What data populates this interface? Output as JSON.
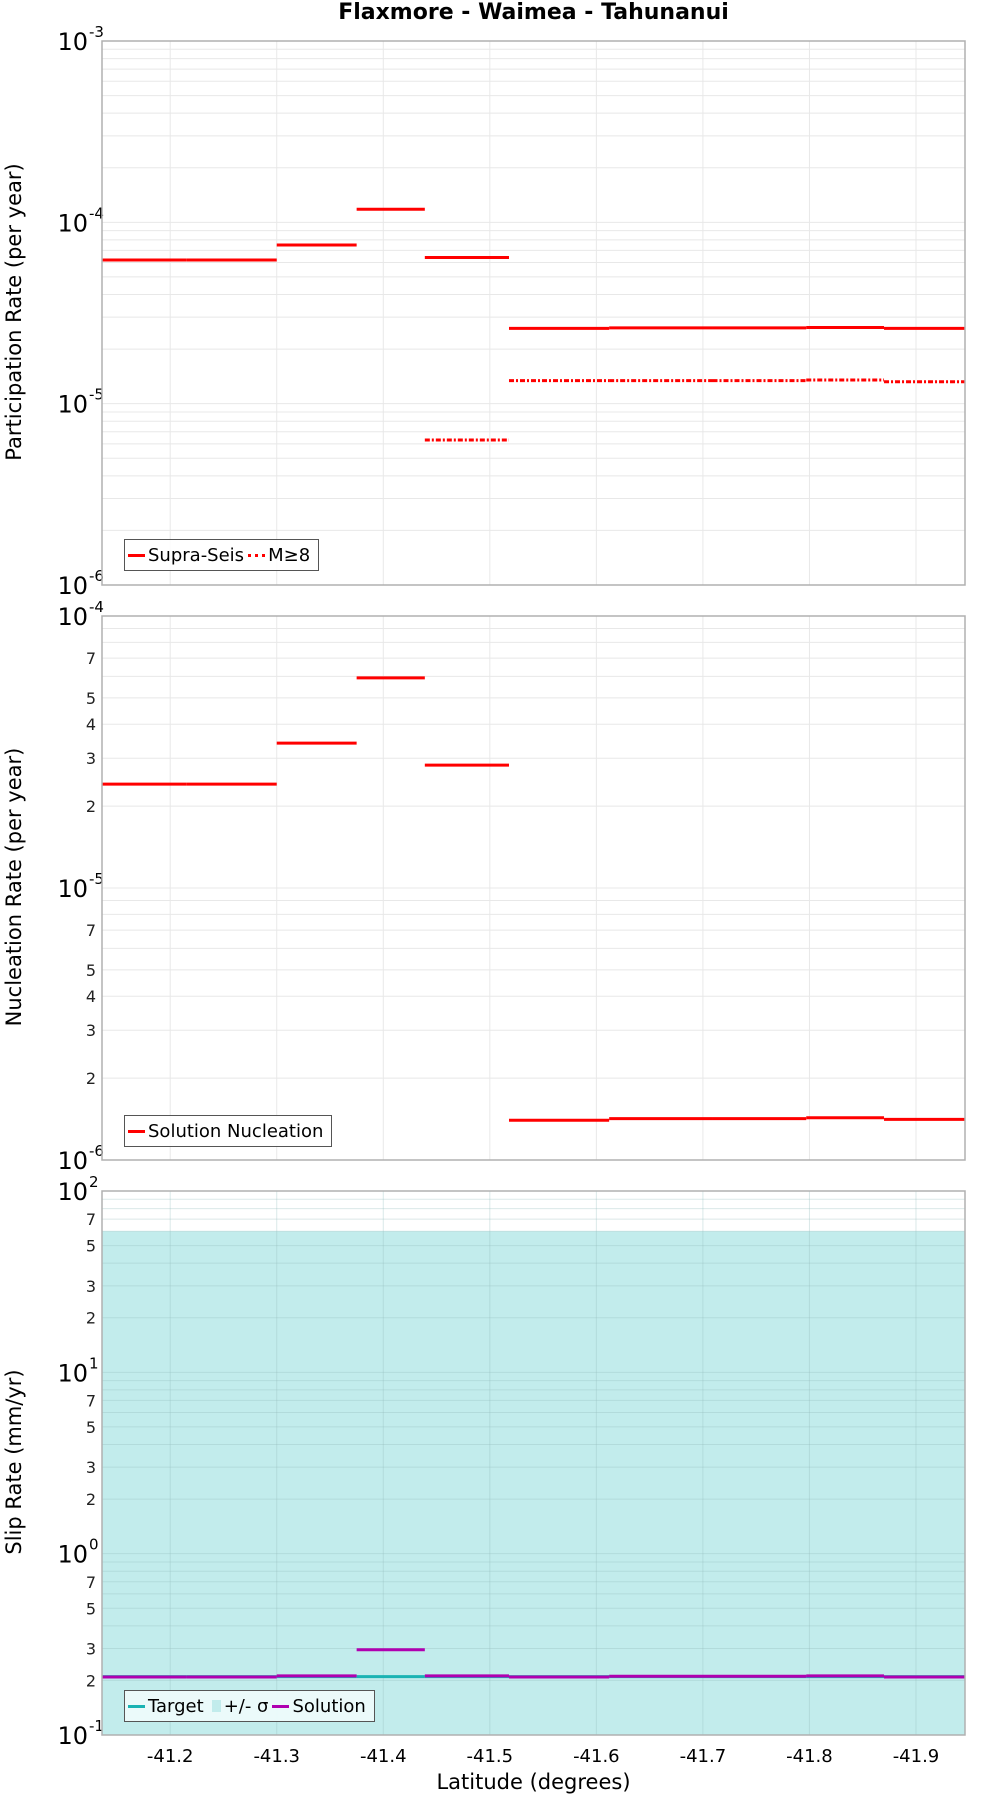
{
  "title": "Flaxmore - Waimea - Tahunanui",
  "x_axis": {
    "label": "Latitude (degrees)",
    "ticks": [
      -41.2,
      -41.3,
      -41.4,
      -41.5,
      -41.6,
      -41.7,
      -41.8,
      -41.9
    ],
    "tick_labels": [
      "-41.2",
      "-41.3",
      "-41.4",
      "-41.5",
      "-41.6",
      "-41.7",
      "-41.8",
      "-41.9"
    ],
    "range": [
      -41.136,
      -41.946
    ]
  },
  "colors": {
    "supra_seis": "#ff0000",
    "m8": "#ff0000",
    "nucleation": "#ff0000",
    "target": "#1ab3b3",
    "sigma_band": "#c2ecec",
    "solution": "#b000b0",
    "grid": "#e8e8e8",
    "frame": "#b0b0b0"
  },
  "panels": [
    {
      "id": "participation",
      "ylabel": "Participation Rate (per year)",
      "legend": [
        {
          "label": "Supra-Seis",
          "style": "solid"
        },
        {
          "label": "M≥8",
          "style": "dashdot"
        }
      ]
    },
    {
      "id": "nucleation",
      "ylabel": "Nucleation Rate (per year)",
      "legend": [
        {
          "label": "Solution Nucleation",
          "style": "solid"
        }
      ]
    },
    {
      "id": "slip",
      "ylabel": "Slip Rate (mm/yr)",
      "legend": [
        {
          "label": "Target",
          "style": "solid"
        },
        {
          "label": "+/- σ",
          "style": "fill"
        },
        {
          "label": "Solution",
          "style": "solid"
        }
      ]
    }
  ],
  "chart_data": [
    {
      "type": "line",
      "title": "Flaxmore - Waimea - Tahunanui",
      "xlabel": "Latitude (degrees)",
      "ylabel": "Participation Rate (per year)",
      "yscale": "log",
      "ylim": [
        1e-06,
        0.001
      ],
      "xlim": [
        -41.136,
        -41.946
      ],
      "grid": true,
      "legend_position": "lower left",
      "segment_bounds": [
        -41.136,
        -41.215,
        -41.3,
        -41.375,
        -41.439,
        -41.518,
        -41.612,
        -41.709,
        -41.797,
        -41.87,
        -41.946
      ],
      "series": [
        {
          "name": "Supra-Seis",
          "style": "solid",
          "values": [
            6.2e-05,
            6.2e-05,
            7.5e-05,
            0.000118,
            6.4e-05,
            2.6e-05,
            2.62e-05,
            2.62e-05,
            2.63e-05,
            2.6e-05
          ]
        },
        {
          "name": "M≥8",
          "style": "dashdot",
          "values": [
            null,
            null,
            null,
            null,
            6.3e-06,
            1.34e-05,
            1.34e-05,
            1.34e-05,
            1.35e-05,
            1.32e-05
          ]
        }
      ]
    },
    {
      "type": "line",
      "xlabel": "Latitude (degrees)",
      "ylabel": "Nucleation Rate (per year)",
      "yscale": "log",
      "ylim": [
        1e-06,
        0.0001
      ],
      "xlim": [
        -41.136,
        -41.946
      ],
      "grid": true,
      "legend_position": "lower left",
      "segment_bounds": [
        -41.136,
        -41.215,
        -41.3,
        -41.375,
        -41.439,
        -41.518,
        -41.612,
        -41.709,
        -41.797,
        -41.87,
        -41.946
      ],
      "series": [
        {
          "name": "Solution Nucleation",
          "style": "solid",
          "values": [
            2.41e-05,
            2.41e-05,
            3.41e-05,
            5.92e-05,
            2.83e-05,
            1.4e-06,
            1.42e-06,
            1.42e-06,
            1.43e-06,
            1.41e-06
          ]
        }
      ]
    },
    {
      "type": "line",
      "xlabel": "Latitude (degrees)",
      "ylabel": "Slip Rate (mm/yr)",
      "yscale": "log",
      "ylim": [
        0.1,
        100
      ],
      "xlim": [
        -41.136,
        -41.946
      ],
      "grid": true,
      "legend_position": "lower left",
      "segment_bounds": [
        -41.136,
        -41.215,
        -41.3,
        -41.375,
        -41.439,
        -41.518,
        -41.612,
        -41.709,
        -41.797,
        -41.87,
        -41.946
      ],
      "series": [
        {
          "name": "Target",
          "style": "solid",
          "values": [
            0.21,
            0.21,
            0.21,
            0.21,
            0.21,
            0.21,
            0.21,
            0.21,
            0.21,
            0.21
          ]
        },
        {
          "name": "+/- σ",
          "style": "fill",
          "lower": 0.1,
          "upper": 60
        },
        {
          "name": "Solution",
          "style": "solid",
          "values": [
            0.209,
            0.209,
            0.212,
            0.295,
            0.212,
            0.209,
            0.211,
            0.211,
            0.212,
            0.209
          ]
        }
      ]
    }
  ]
}
